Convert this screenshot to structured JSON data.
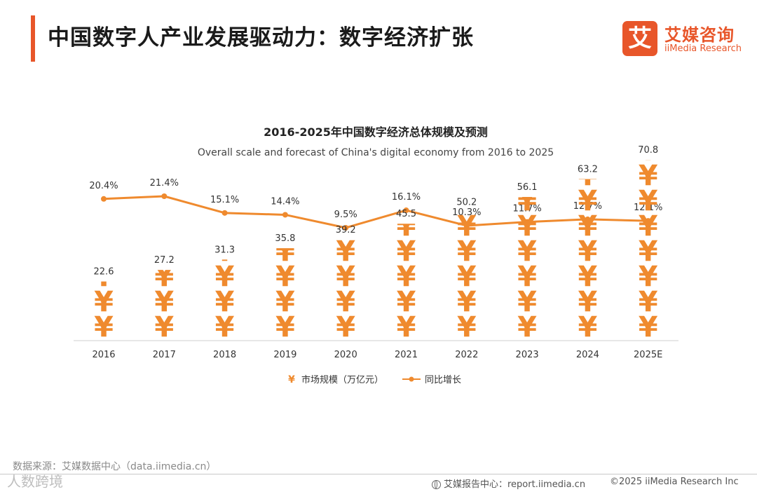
{
  "header": {
    "title": "中国数字人产业发展驱动力：数字经济扩张",
    "logo_mark": "艾",
    "logo_cn": "艾媒咨询",
    "logo_en": "iiMedia Research"
  },
  "colors": {
    "accent": "#e8562a",
    "series": "#ef8a2e"
  },
  "chart_data": {
    "type": "bar",
    "title": "2016-2025年中国数字经济总体规模及预测",
    "subtitle": "Overall scale and forecast of China's digital economy from 2016 to 2025",
    "categories": [
      "2016",
      "2017",
      "2018",
      "2019",
      "2020",
      "2021",
      "2022",
      "2023",
      "2024",
      "2025E"
    ],
    "series": [
      {
        "name": "市场规模（万亿元）",
        "kind": "pictograph",
        "icon": "¥",
        "values": [
          22.6,
          27.2,
          31.3,
          35.8,
          39.2,
          45.5,
          50.2,
          56.1,
          63.2,
          70.8
        ],
        "value_labels": [
          "22.6",
          "27.2",
          "31.3",
          "35.8",
          "39.2",
          "45.5",
          "50.2",
          "56.1",
          "63.2",
          "70.8"
        ]
      },
      {
        "name": "同比增长",
        "kind": "line",
        "values": [
          20.4,
          21.4,
          15.1,
          14.4,
          9.5,
          16.1,
          10.3,
          11.7,
          12.7,
          12.1
        ],
        "value_labels": [
          "20.4%",
          "21.4%",
          "15.1%",
          "14.4%",
          "9.5%",
          "16.1%",
          "10.3%",
          "11.7%",
          "12.7%",
          "12.1%"
        ]
      }
    ],
    "legend": {
      "items": [
        "市场规模（万亿元）",
        "同比增长"
      ],
      "position": "bottom"
    },
    "grid": false
  },
  "footer": {
    "source": "数据来源：艾媒数据中心（data.iimedia.cn）",
    "watermark": "人数跨境",
    "report": "艾媒报告中心：report.iimedia.cn",
    "copyright": "©2025  iiMedia Research  Inc"
  }
}
